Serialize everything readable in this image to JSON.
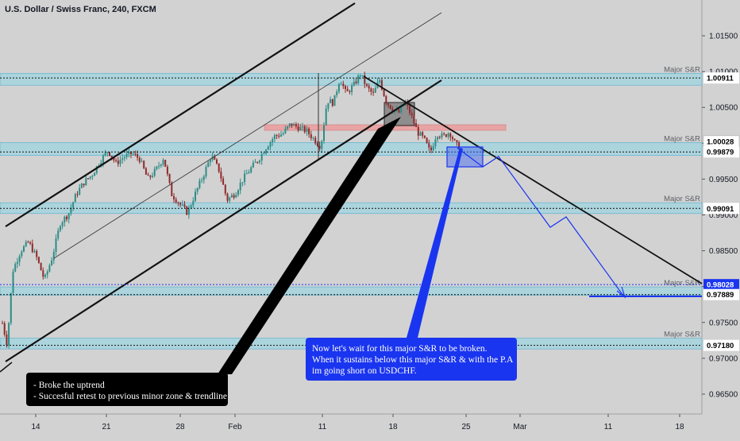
{
  "chart_data": {
    "type": "candlestick",
    "title": "U.S. Dollar / Swiss Franc, 240, FXCM",
    "x_ticks": [
      "14",
      "21",
      "28",
      "Feb",
      "11",
      "18",
      "25",
      "Mar",
      "11",
      "18"
    ],
    "y_ticks": [
      "1.01500",
      "1.01000",
      "1.00500",
      "1.00000",
      "0.99500",
      "0.99000",
      "0.98500",
      "0.98000",
      "0.97500",
      "0.97000",
      "0.96500"
    ],
    "ylim": [
      0.9643,
      1.0191
    ],
    "price_labels": [
      {
        "label": "1.00911",
        "value": 1.00911,
        "style": "dark"
      },
      {
        "label": "1.00028",
        "value": 1.00028,
        "style": "plain"
      },
      {
        "label": "0.99879",
        "value": 0.99879,
        "style": "dark"
      },
      {
        "label": "0.99091",
        "value": 0.99091,
        "style": "dark"
      },
      {
        "label": "0.98028",
        "value": 0.98028,
        "style": "blue"
      },
      {
        "label": "0.97889",
        "value": 0.97889,
        "style": "dark"
      },
      {
        "label": "0.97180",
        "value": 0.9718,
        "style": "dark"
      }
    ],
    "zones": [
      {
        "label": "Major S&R",
        "top": 1.00975,
        "bottom": 1.0081
      },
      {
        "label": "Major S&R",
        "top": 1.0001,
        "bottom": 0.9983
      },
      {
        "label": "Major S&R",
        "top": 0.9917,
        "bottom": 0.9902
      },
      {
        "label": "Major S&R",
        "top": 0.97995,
        "bottom": 0.9788
      },
      {
        "label": "Major S&R",
        "top": 0.9728,
        "bottom": 0.9713
      }
    ],
    "annotations": {
      "left_box": [
        "- Broke the uptrend",
        "- Succesful retest to previous minor zone & trendline"
      ],
      "right_box": [
        "Now let's wait for this major S&R to be broken.",
        "When it sustains below this major S&R & with the P.A",
        "im going short on USDCHF."
      ]
    },
    "colors": {
      "background": "#d2d2d2",
      "zone_fill": "#9fd4e0",
      "zone_border": "#6cb6d1",
      "resistance_fill": "#e8a3a3",
      "bull": "#2d8c86",
      "bear": "#8f2a2a",
      "blue": "#1a35f0"
    }
  }
}
